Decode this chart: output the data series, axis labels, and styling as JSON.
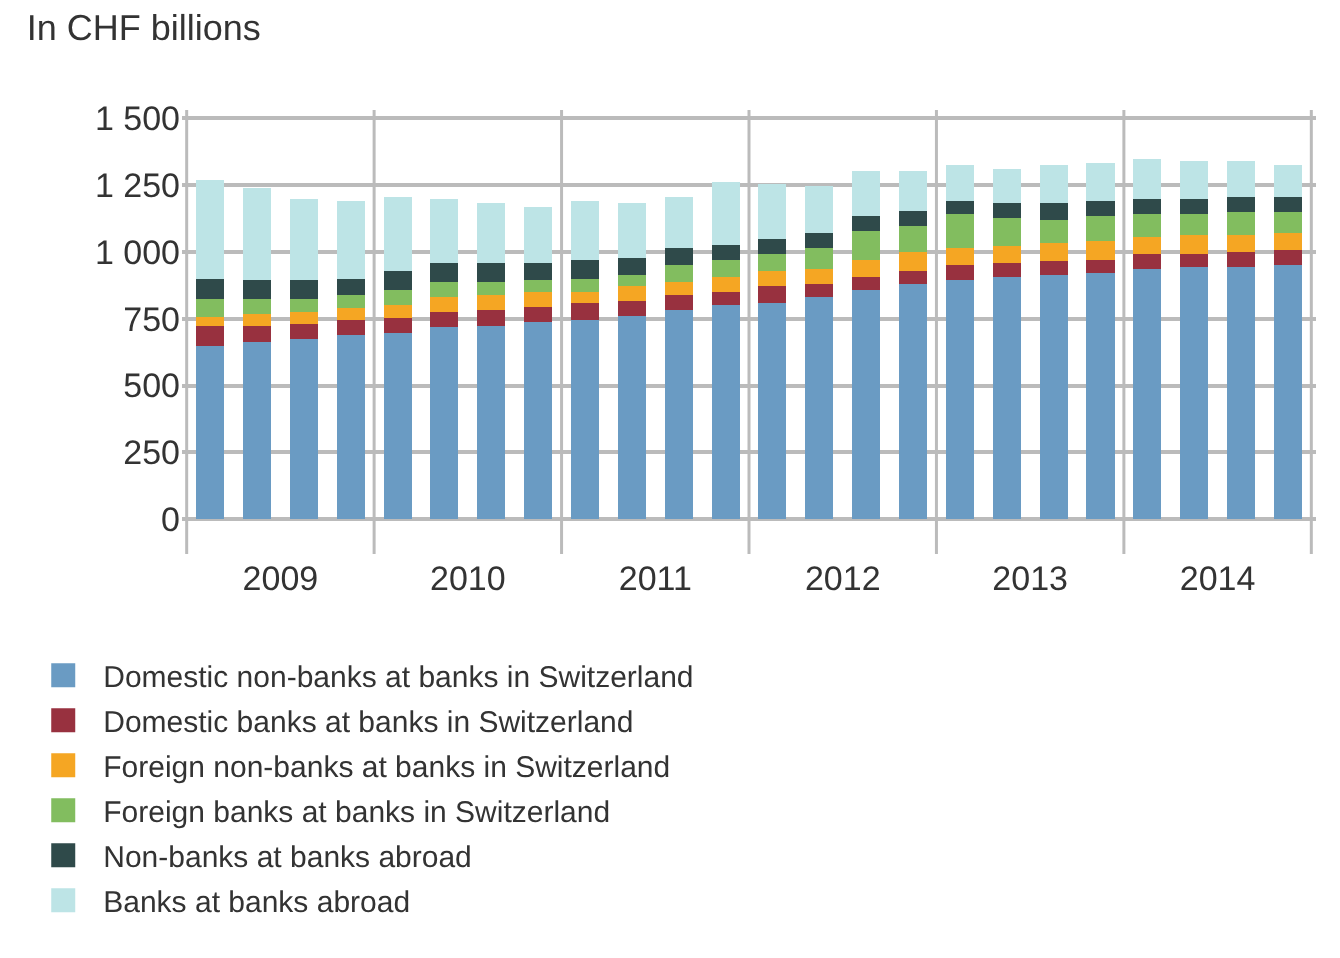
{
  "chart_data": {
    "type": "bar",
    "stacked": true,
    "title": "In CHF billions",
    "categories": [
      null,
      "2009",
      null,
      null,
      null,
      "2010",
      null,
      null,
      null,
      "2011",
      null,
      null,
      null,
      "2012",
      null,
      null,
      null,
      "2013",
      null,
      null,
      null,
      "2014",
      null,
      null
    ],
    "series": [
      {
        "name": "Domestic non-banks at banks in Switzerland",
        "color": "#6a9bc3",
        "values": [
          647,
          661,
          675,
          689,
          696,
          717,
          724,
          738,
          745,
          759,
          781,
          802,
          809,
          830,
          858,
          879,
          893,
          907,
          915,
          922,
          936,
          943,
          943,
          950
        ]
      },
      {
        "name": "Domestic banks at banks in Switzerland",
        "color": "#98313f",
        "values": [
          77,
          63,
          56,
          56,
          56,
          56,
          57,
          57,
          64,
          57,
          56,
          49,
          63,
          49,
          49,
          50,
          57,
          50,
          49,
          49,
          56,
          49,
          56,
          56
        ]
      },
      {
        "name": "Foreign non-banks at banks in Switzerland",
        "color": "#f5a623",
        "values": [
          33,
          45,
          42,
          43,
          50,
          57,
          56,
          56,
          42,
          56,
          49,
          56,
          57,
          57,
          64,
          70,
          63,
          66,
          70,
          70,
          64,
          71,
          64,
          64
        ]
      },
      {
        "name": "Foreign banks at banks in Switzerland",
        "color": "#82bd5f",
        "values": [
          66,
          54,
          50,
          49,
          56,
          56,
          49,
          42,
          49,
          43,
          64,
          64,
          63,
          77,
          106,
          99,
          127,
          103,
          85,
          92,
          84,
          77,
          84,
          77
        ]
      },
      {
        "name": "Non-banks at banks abroad",
        "color": "#2f4a4a",
        "values": [
          77,
          70,
          70,
          63,
          71,
          71,
          71,
          64,
          71,
          63,
          63,
          56,
          57,
          57,
          56,
          56,
          50,
          57,
          64,
          57,
          57,
          57,
          57,
          57
        ]
      },
      {
        "name": "Banks at banks abroad",
        "color": "#bde4e6",
        "values": [
          367,
          346,
          304,
          290,
          275,
          240,
          226,
          211,
          219,
          205,
          191,
          233,
          204,
          176,
          169,
          148,
          134,
          127,
          141,
          141,
          148,
          141,
          134,
          120
        ]
      }
    ],
    "ylim": [
      -130,
      1530
    ],
    "yticks": [
      0,
      250,
      500,
      750,
      {
        "value": 1000,
        "label": "1 000"
      },
      {
        "value": 1250,
        "label": "1 250"
      },
      {
        "value": 1500,
        "label": "1 500"
      }
    ],
    "grid": true,
    "legend": "bottom"
  }
}
